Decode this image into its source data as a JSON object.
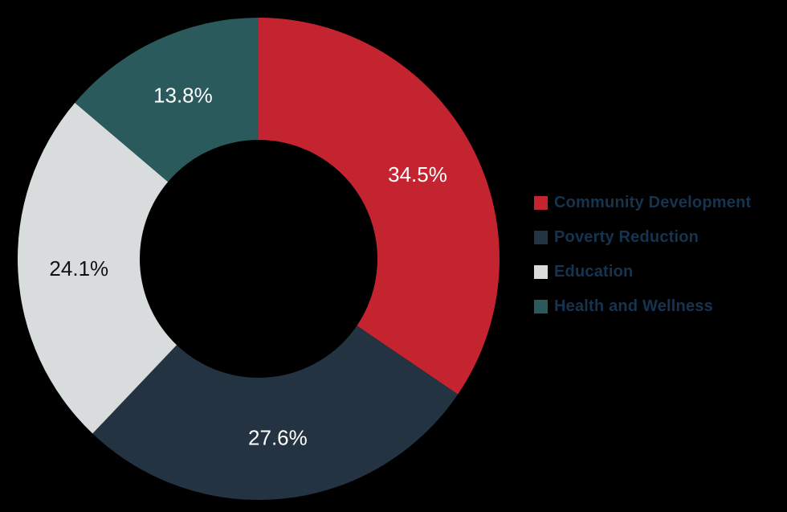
{
  "page": {
    "background_color": "#000000"
  },
  "chart_data": {
    "type": "pie",
    "subtype": "donut",
    "title": "",
    "legend_position": "right",
    "start_angle_deg": 0,
    "direction": "clockwise",
    "categories": [
      "Community Development",
      "Poverty Reduction",
      "Education",
      "Health and Wellness"
    ],
    "values": [
      34.5,
      27.6,
      24.1,
      13.8
    ],
    "slices": [
      {
        "label": "Community Development",
        "value": 34.5,
        "percent_label": "34.5%",
        "color": "#c42430",
        "label_color": "#ffffff"
      },
      {
        "label": "Poverty Reduction",
        "value": 27.6,
        "percent_label": "27.6%",
        "color": "#243342",
        "label_color": "#ffffff"
      },
      {
        "label": "Education",
        "value": 24.1,
        "percent_label": "24.1%",
        "color": "#d9dcdd",
        "label_color": "#111111"
      },
      {
        "label": "Health and Wellness",
        "value": 13.8,
        "percent_label": "13.8%",
        "color": "#2b5a5c",
        "label_color": "#ffffff"
      }
    ],
    "legend_text_color": "#16334f"
  }
}
